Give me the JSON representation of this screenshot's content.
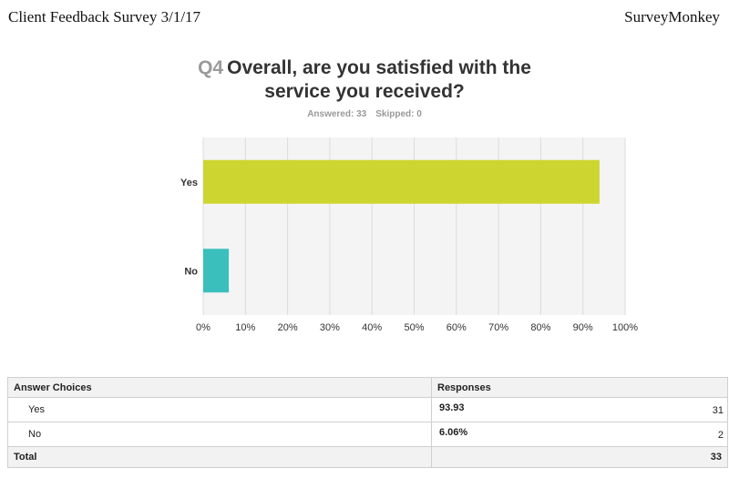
{
  "header": {
    "left": "Client Feedback Survey 3/1/17",
    "right": "SurveyMonkey"
  },
  "question": {
    "number": "Q4",
    "title_line1": "Overall, are you satisfied with the",
    "title_line2": "service you received?",
    "answered": "Answered: 33",
    "skipped": "Skipped: 0"
  },
  "chart_data": {
    "type": "bar",
    "orientation": "horizontal",
    "categories": [
      "Yes",
      "No"
    ],
    "values": [
      93.93,
      6.06
    ],
    "colors": [
      "#cdd630",
      "#3bbfbd"
    ],
    "xlim": [
      0,
      100
    ],
    "x_ticks": [
      "0%",
      "10%",
      "20%",
      "30%",
      "40%",
      "50%",
      "60%",
      "70%",
      "80%",
      "90%",
      "100%"
    ],
    "grid": true,
    "title": "",
    "xlabel": "",
    "ylabel": ""
  },
  "table": {
    "headers": [
      "Answer Choices",
      "Responses"
    ],
    "rows": [
      {
        "choice": "Yes",
        "percent": "93.93",
        "count": "31"
      },
      {
        "choice": "No",
        "percent": "6.06%",
        "count": "2"
      }
    ],
    "total_label": "Total",
    "total_count": "33"
  }
}
